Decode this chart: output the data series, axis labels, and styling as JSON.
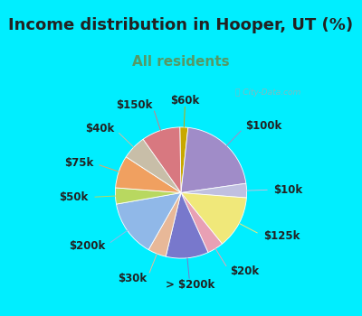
{
  "title": "Income distribution in Hooper, UT (%)",
  "subtitle": "All residents",
  "bg_color": "#00eeff",
  "chart_bg": "#e8f5e9",
  "watermark": "City-Data.com",
  "segments": [
    {
      "label": "$60k",
      "value": 2.0,
      "color": "#c8a800"
    },
    {
      "label": "$100k",
      "value": 21.0,
      "color": "#a08cc8"
    },
    {
      "label": "$10k",
      "value": 3.5,
      "color": "#c0c0e0"
    },
    {
      "label": "$125k",
      "value": 13.0,
      "color": "#f0e87a"
    },
    {
      "label": "$20k",
      "value": 4.0,
      "color": "#e8a0b4"
    },
    {
      "label": "> $200k",
      "value": 10.5,
      "color": "#7878cc"
    },
    {
      "label": "$30k",
      "value": 4.5,
      "color": "#e8b898"
    },
    {
      "label": "$200k",
      "value": 14.0,
      "color": "#90b8e8"
    },
    {
      "label": "$50k",
      "value": 4.0,
      "color": "#b8d860"
    },
    {
      "label": "$75k",
      "value": 8.0,
      "color": "#f0a060"
    },
    {
      "label": "$40k",
      "value": 6.0,
      "color": "#c8bea8"
    },
    {
      "label": "$150k",
      "value": 9.5,
      "color": "#d87880"
    }
  ],
  "title_fontsize": 13,
  "subtitle_fontsize": 11,
  "label_fontsize": 8.5,
  "startangle": 91
}
